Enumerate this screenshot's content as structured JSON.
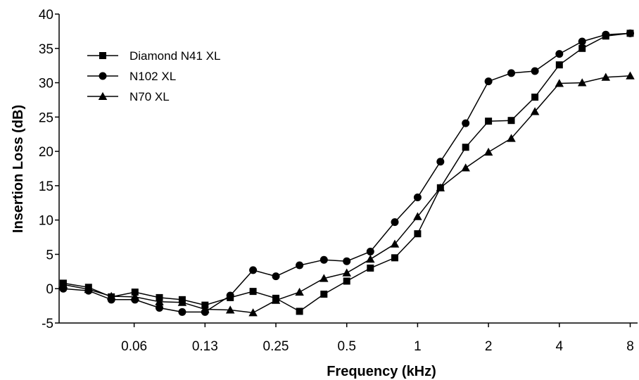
{
  "chart_data": {
    "type": "line",
    "title": "",
    "xlabel": "Frequency (kHz)",
    "ylabel": "Insertion Loss (dB)",
    "x_scale": "log",
    "xlim": [
      0.03,
      8.6
    ],
    "ylim": [
      -5,
      40
    ],
    "x_ticks": [
      {
        "value": 0.0625,
        "label": "0.06"
      },
      {
        "value": 0.125,
        "label": "0.13"
      },
      {
        "value": 0.25,
        "label": "0.25"
      },
      {
        "value": 0.5,
        "label": "0.5"
      },
      {
        "value": 1,
        "label": "1"
      },
      {
        "value": 2,
        "label": "2"
      },
      {
        "value": 4,
        "label": "4"
      },
      {
        "value": 8,
        "label": "8"
      }
    ],
    "y_ticks": [
      -5,
      0,
      5,
      10,
      15,
      20,
      25,
      30,
      35,
      40
    ],
    "grid": false,
    "legend_position": "top-left",
    "x": [
      0.03125,
      0.04,
      0.05,
      0.063,
      0.08,
      0.1,
      0.125,
      0.16,
      0.2,
      0.25,
      0.315,
      0.4,
      0.5,
      0.63,
      0.8,
      1,
      1.25,
      1.6,
      2,
      2.5,
      3.15,
      4,
      5,
      6.3,
      8
    ],
    "series": [
      {
        "name": "Diamond N41 XL",
        "marker": "square",
        "values": [
          0.8,
          0.2,
          -1.2,
          -0.5,
          -1.3,
          -1.6,
          -2.4,
          -1.3,
          -0.4,
          -1.4,
          -3.3,
          -0.8,
          1.1,
          3.0,
          4.5,
          8.0,
          14.7,
          20.6,
          24.4,
          24.5,
          27.9,
          32.6,
          35.0,
          36.8,
          37.2
        ]
      },
      {
        "name": "N102 XL",
        "marker": "circle",
        "values": [
          0.0,
          -0.3,
          -1.6,
          -1.6,
          -2.8,
          -3.4,
          -3.4,
          -1.0,
          2.7,
          1.8,
          3.4,
          4.2,
          4.0,
          5.4,
          9.7,
          13.3,
          18.5,
          24.1,
          30.2,
          31.4,
          31.7,
          34.2,
          36.0,
          37.0,
          37.2
        ]
      },
      {
        "name": "N70 XL",
        "marker": "triangle",
        "values": [
          0.6,
          -0.1,
          -1.1,
          -1.2,
          -1.9,
          -2.0,
          -3.0,
          -3.1,
          -3.5,
          -1.7,
          -0.5,
          1.5,
          2.3,
          4.3,
          6.5,
          10.5,
          14.7,
          17.6,
          19.9,
          21.9,
          25.8,
          29.9,
          30.0,
          30.8,
          31.0
        ]
      }
    ]
  }
}
